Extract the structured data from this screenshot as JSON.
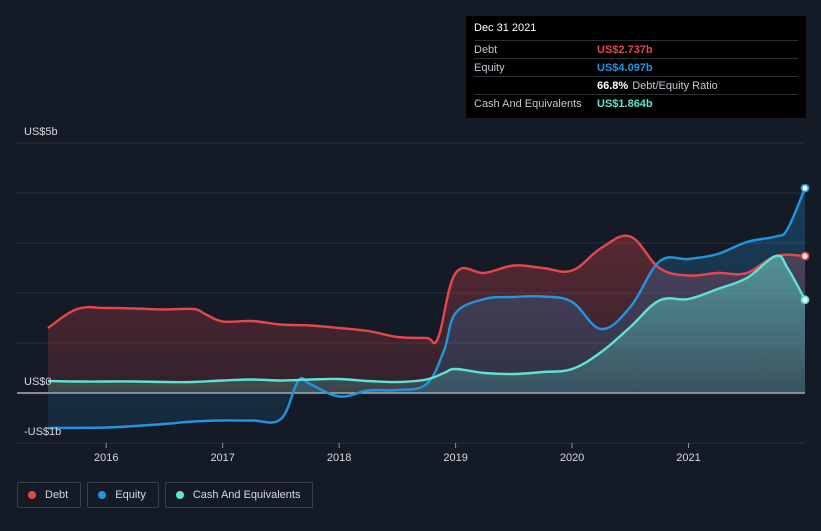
{
  "tooltip": {
    "date": "Dec 31 2021",
    "rows": [
      {
        "label": "Debt",
        "value": "US$2.737b",
        "color": "#e6474f",
        "extra": ""
      },
      {
        "label": "Equity",
        "value": "US$4.097b",
        "color": "#2394df",
        "extra": ""
      },
      {
        "label": "",
        "value": "66.8%",
        "color": "#ffffff",
        "extra": "Debt/Equity Ratio"
      },
      {
        "label": "Cash And Equivalents",
        "value": "US$1.864b",
        "color": "#5fe3d2",
        "extra": ""
      }
    ]
  },
  "legend": [
    {
      "label": "Debt",
      "color": "#e6474f"
    },
    {
      "label": "Equity",
      "color": "#2394df"
    },
    {
      "label": "Cash And Equivalents",
      "color": "#5fe3d2"
    }
  ],
  "chart_data": {
    "type": "area",
    "ylim": [
      -1,
      5
    ],
    "xlim": [
      2015.5,
      2022.0
    ],
    "y_tick_labels": [
      {
        "value": 5,
        "label": "US$5b"
      },
      {
        "value": 0,
        "label": "US$0"
      },
      {
        "value": -1,
        "label": "-US$1b"
      }
    ],
    "x_tick_labels": [
      {
        "value": 2016,
        "label": "2016"
      },
      {
        "value": 2017,
        "label": "2017"
      },
      {
        "value": 2018,
        "label": "2018"
      },
      {
        "value": 2019,
        "label": "2019"
      },
      {
        "value": 2020,
        "label": "2020"
      },
      {
        "value": 2021,
        "label": "2021"
      }
    ],
    "series": [
      {
        "name": "Debt",
        "color": "#e6474f",
        "x": [
          2015.5,
          2015.75,
          2016.0,
          2016.25,
          2016.5,
          2016.75,
          2016.85,
          2017.0,
          2017.25,
          2017.5,
          2017.75,
          2018.0,
          2018.25,
          2018.5,
          2018.75,
          2018.85,
          2019.0,
          2019.25,
          2019.5,
          2019.75,
          2020.0,
          2020.25,
          2020.5,
          2020.75,
          2021.0,
          2021.25,
          2021.5,
          2021.75,
          2022.0
        ],
        "y": [
          1.3,
          1.68,
          1.7,
          1.69,
          1.67,
          1.68,
          1.58,
          1.43,
          1.44,
          1.37,
          1.35,
          1.3,
          1.24,
          1.12,
          1.1,
          1.1,
          2.4,
          2.4,
          2.55,
          2.5,
          2.45,
          2.9,
          3.13,
          2.5,
          2.35,
          2.4,
          2.4,
          2.74,
          2.737
        ]
      },
      {
        "name": "Equity",
        "color": "#2394df",
        "x": [
          2015.5,
          2016.0,
          2016.25,
          2016.5,
          2016.75,
          2017.0,
          2017.25,
          2017.5,
          2017.65,
          2017.75,
          2018.0,
          2018.25,
          2018.5,
          2018.75,
          2018.9,
          2019.0,
          2019.25,
          2019.5,
          2019.75,
          2020.0,
          2020.25,
          2020.5,
          2020.75,
          2021.0,
          2021.25,
          2021.5,
          2021.75,
          2021.85,
          2022.0
        ],
        "y": [
          -0.7,
          -0.69,
          -0.66,
          -0.62,
          -0.57,
          -0.55,
          -0.55,
          -0.52,
          0.25,
          0.18,
          -0.07,
          0.05,
          0.06,
          0.18,
          0.85,
          1.6,
          1.88,
          1.92,
          1.93,
          1.82,
          1.28,
          1.72,
          2.63,
          2.68,
          2.78,
          3.02,
          3.13,
          3.28,
          4.097
        ]
      },
      {
        "name": "Cash And Equivalents",
        "color": "#5fe3d2",
        "x": [
          2015.5,
          2015.75,
          2016.0,
          2016.25,
          2016.5,
          2016.75,
          2017.0,
          2017.25,
          2017.5,
          2017.75,
          2018.0,
          2018.25,
          2018.5,
          2018.75,
          2018.9,
          2019.0,
          2019.25,
          2019.5,
          2019.75,
          2020.0,
          2020.25,
          2020.5,
          2020.75,
          2021.0,
          2021.25,
          2021.5,
          2021.75,
          2021.85,
          2022.0
        ],
        "y": [
          0.24,
          0.23,
          0.23,
          0.23,
          0.22,
          0.22,
          0.25,
          0.27,
          0.25,
          0.27,
          0.28,
          0.24,
          0.22,
          0.27,
          0.4,
          0.48,
          0.4,
          0.38,
          0.42,
          0.48,
          0.82,
          1.32,
          1.85,
          1.88,
          2.08,
          2.3,
          2.74,
          2.5,
          1.864
        ]
      }
    ]
  }
}
